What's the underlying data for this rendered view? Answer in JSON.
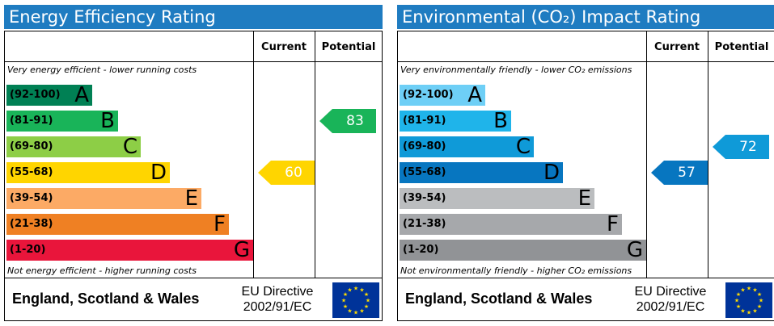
{
  "chart_data": [
    {
      "type": "bar",
      "title": "Energy Efficiency Rating",
      "column_headers": [
        "Current",
        "Potential"
      ],
      "top_caption": "Very energy efficient - lower running costs",
      "bottom_caption": "Not energy efficient - higher running costs",
      "categories": [
        "A",
        "B",
        "C",
        "D",
        "E",
        "F",
        "G"
      ],
      "bands": [
        {
          "range": "(92-100)",
          "letter": "A",
          "color": "#008054"
        },
        {
          "range": "(81-91)",
          "letter": "B",
          "color": "#19b459"
        },
        {
          "range": "(69-80)",
          "letter": "C",
          "color": "#8dce46"
        },
        {
          "range": "(55-68)",
          "letter": "D",
          "color": "#ffd500"
        },
        {
          "range": "(39-54)",
          "letter": "E",
          "color": "#fcaa65"
        },
        {
          "range": "(21-38)",
          "letter": "F",
          "color": "#ef8023"
        },
        {
          "range": "(1-20)",
          "letter": "G",
          "color": "#e9153b"
        }
      ],
      "current": {
        "value": 60,
        "band": "D",
        "color": "#ffd500"
      },
      "potential": {
        "value": 83,
        "band": "B",
        "color": "#19b459"
      },
      "footer": {
        "country": "England, Scotland & Wales",
        "directive_line1": "EU Directive",
        "directive_line2": "2002/91/EC"
      }
    },
    {
      "type": "bar",
      "title": "Environmental (CO₂) Impact Rating",
      "column_headers": [
        "Current",
        "Potential"
      ],
      "top_caption": "Very environmentally friendly - lower CO₂ emissions",
      "bottom_caption": "Not environmentally friendly - higher CO₂ emissions",
      "categories": [
        "A",
        "B",
        "C",
        "D",
        "E",
        "F",
        "G"
      ],
      "bands": [
        {
          "range": "(92-100)",
          "letter": "A",
          "color": "#6ecff6"
        },
        {
          "range": "(81-91)",
          "letter": "B",
          "color": "#1fb4ea"
        },
        {
          "range": "(69-80)",
          "letter": "C",
          "color": "#0f9ad8"
        },
        {
          "range": "(55-68)",
          "letter": "D",
          "color": "#0776c0"
        },
        {
          "range": "(39-54)",
          "letter": "E",
          "color": "#bbbdbf"
        },
        {
          "range": "(21-38)",
          "letter": "F",
          "color": "#a6a8ab"
        },
        {
          "range": "(1-20)",
          "letter": "G",
          "color": "#919396"
        }
      ],
      "current": {
        "value": 57,
        "band": "D",
        "color": "#0776c0"
      },
      "potential": {
        "value": 72,
        "band": "C",
        "color": "#0f9ad8"
      },
      "footer": {
        "country": "England, Scotland & Wales",
        "directive_line1": "EU Directive",
        "directive_line2": "2002/91/EC"
      }
    }
  ],
  "colors": {
    "title_bar": "#1f7cc1",
    "eu_flag_blue": "#003399",
    "eu_flag_star": "#ffdd00"
  },
  "icons": {
    "flag": "eu-flag-icon"
  }
}
